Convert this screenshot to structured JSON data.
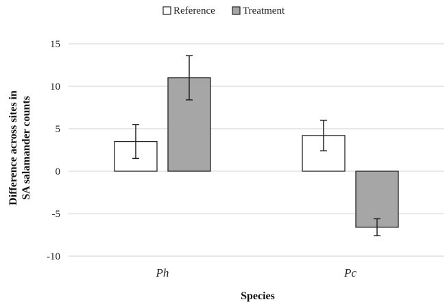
{
  "chart_data": {
    "type": "bar",
    "categories": [
      "Ph",
      "Pc"
    ],
    "series": [
      {
        "name": "Reference",
        "values": [
          3.5,
          4.2
        ],
        "errors": [
          2.0,
          1.8
        ],
        "color": "#ffffff"
      },
      {
        "name": "Treatment",
        "values": [
          11.0,
          -6.6
        ],
        "errors": [
          2.6,
          1.0
        ],
        "color": "#a6a6a6"
      }
    ],
    "xlabel": "Species",
    "ylabel": "Difference across sites in SA salamander counts",
    "ylabel_lines": [
      "Difference across sites in",
      "SA salamander counts"
    ],
    "ylim": [
      -10,
      15
    ],
    "yticks": [
      15,
      10,
      5,
      0,
      -5,
      -10
    ],
    "grid": true,
    "legend_position": "top-center",
    "grid_color": "#d9d9d9",
    "bar_edge_color": "#222222"
  }
}
